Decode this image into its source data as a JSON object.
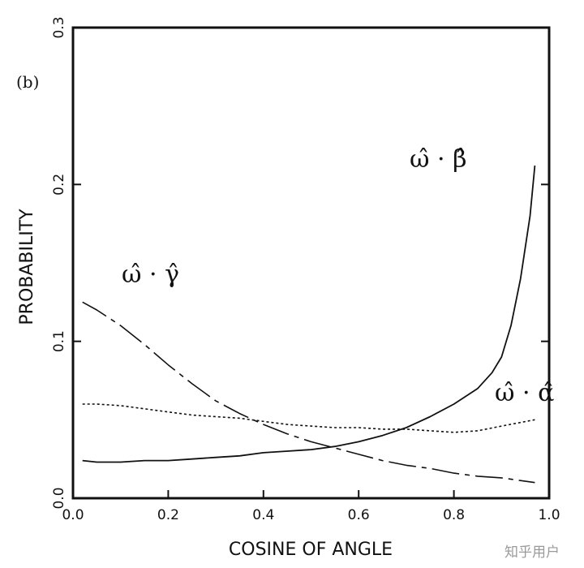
{
  "chart_data": {
    "type": "line",
    "panel_label": "(b)",
    "xlabel": "COSINE OF ANGLE",
    "ylabel": "PROBABILITY",
    "xlim": [
      0.0,
      1.0
    ],
    "ylim": [
      0.0,
      0.3
    ],
    "xticks": [
      "0.0",
      "0.2",
      "0.4",
      "0.6",
      "0.8",
      "1.0"
    ],
    "yticks": [
      "0.0",
      "0.1",
      "0.2",
      "0.3"
    ],
    "grid": false,
    "legend": "none",
    "series": [
      {
        "name": "ω̂ · γ̂",
        "style": "long-dash",
        "x": [
          0.02,
          0.05,
          0.1,
          0.15,
          0.2,
          0.25,
          0.3,
          0.35,
          0.4,
          0.45,
          0.5,
          0.55,
          0.6,
          0.65,
          0.7,
          0.75,
          0.8,
          0.85,
          0.9,
          0.97
        ],
        "y": [
          0.125,
          0.12,
          0.11,
          0.098,
          0.085,
          0.073,
          0.062,
          0.054,
          0.047,
          0.041,
          0.036,
          0.032,
          0.028,
          0.024,
          0.021,
          0.019,
          0.016,
          0.014,
          0.013,
          0.01
        ]
      },
      {
        "name": "ω̂ · β̂",
        "style": "solid",
        "x": [
          0.02,
          0.05,
          0.1,
          0.15,
          0.2,
          0.25,
          0.3,
          0.35,
          0.4,
          0.45,
          0.5,
          0.55,
          0.6,
          0.65,
          0.7,
          0.75,
          0.8,
          0.85,
          0.88,
          0.9,
          0.92,
          0.94,
          0.96,
          0.97
        ],
        "y": [
          0.024,
          0.023,
          0.023,
          0.024,
          0.024,
          0.025,
          0.026,
          0.027,
          0.029,
          0.03,
          0.031,
          0.033,
          0.036,
          0.04,
          0.045,
          0.052,
          0.06,
          0.07,
          0.08,
          0.09,
          0.11,
          0.14,
          0.18,
          0.212
        ]
      },
      {
        "name": "ω̂ · α̂",
        "style": "dotted",
        "x": [
          0.02,
          0.05,
          0.1,
          0.15,
          0.2,
          0.25,
          0.3,
          0.35,
          0.4,
          0.45,
          0.5,
          0.55,
          0.6,
          0.65,
          0.7,
          0.75,
          0.8,
          0.85,
          0.9,
          0.97
        ],
        "y": [
          0.06,
          0.06,
          0.059,
          0.057,
          0.055,
          0.053,
          0.052,
          0.051,
          0.049,
          0.047,
          0.046,
          0.045,
          0.045,
          0.044,
          0.044,
          0.043,
          0.042,
          0.043,
          0.046,
          0.05
        ]
      }
    ]
  },
  "watermark": "知乎用户"
}
